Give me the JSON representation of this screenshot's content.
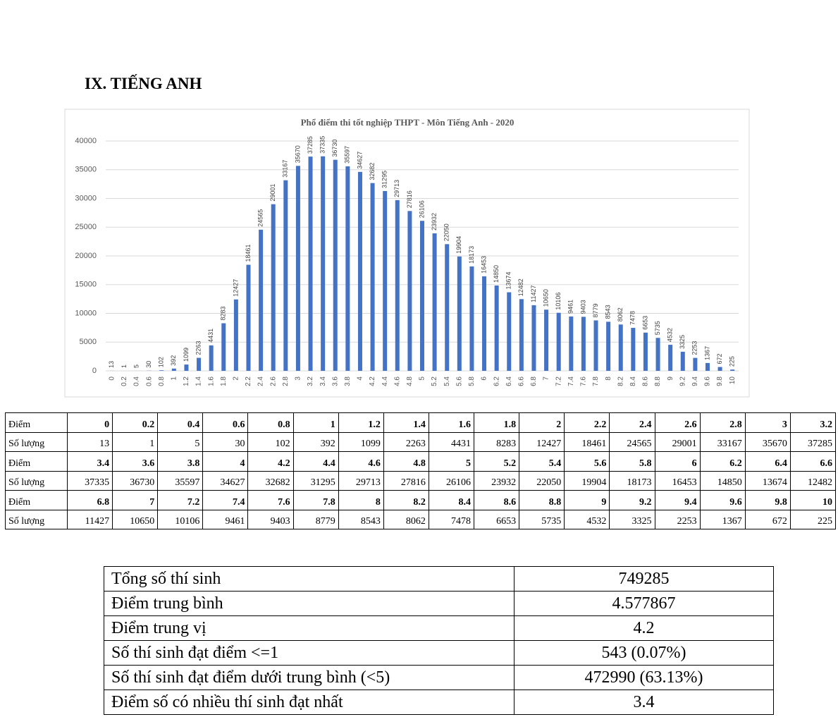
{
  "heading": "IX. TIẾNG ANH",
  "chart_data": {
    "type": "bar",
    "title": "Phổ điểm thi tốt nghiệp THPT - Môn Tiếng Anh - 2020",
    "categories": [
      "0",
      "0.2",
      "0.4",
      "0.6",
      "0.8",
      "1",
      "1.2",
      "1.4",
      "1.6",
      "1.8",
      "2",
      "2.2",
      "2.4",
      "2.6",
      "2.8",
      "3",
      "3.2",
      "3.4",
      "3.6",
      "3.8",
      "4",
      "4.2",
      "4.4",
      "4.6",
      "4.8",
      "5",
      "5.2",
      "5.4",
      "5.6",
      "5.8",
      "6",
      "6.2",
      "6.4",
      "6.6",
      "6.8",
      "7",
      "7.2",
      "7.4",
      "7.6",
      "7.8",
      "8",
      "8.2",
      "8.4",
      "8.6",
      "8.8",
      "9",
      "9.2",
      "9.4",
      "9.6",
      "9.8",
      "10"
    ],
    "values": [
      13,
      1,
      5,
      30,
      102,
      392,
      1099,
      2263,
      4431,
      8283,
      12427,
      18461,
      24565,
      29001,
      33167,
      35670,
      37285,
      37335,
      36730,
      35597,
      34627,
      32682,
      31295,
      29713,
      27816,
      26106,
      23932,
      22050,
      19904,
      18173,
      16453,
      14850,
      13674,
      12482,
      11427,
      10650,
      10106,
      9461,
      9403,
      8779,
      8543,
      8062,
      7478,
      6653,
      5735,
      4532,
      3325,
      2253,
      1367,
      672,
      225
    ],
    "color": "#4472c4",
    "ylim": [
      0,
      40000
    ],
    "yticks": [
      0,
      5000,
      10000,
      15000,
      20000,
      25000,
      30000,
      35000,
      40000
    ],
    "grid": true
  },
  "table": {
    "row_labels": [
      "Điểm",
      "Số lượng"
    ]
  },
  "summary": {
    "rows": [
      [
        "Tổng số thí sinh",
        "749285"
      ],
      [
        "Điểm trung bình",
        "4.577867"
      ],
      [
        "Điểm trung vị",
        "4.2"
      ],
      [
        "Số thí sinh đạt điểm <=1",
        "543 (0.07%)"
      ],
      [
        "Số thí sinh đạt điểm dưới trung bình (<5)",
        "472990 (63.13%)"
      ],
      [
        "Điểm số có nhiều thí sinh đạt nhất",
        "3.4"
      ]
    ]
  }
}
